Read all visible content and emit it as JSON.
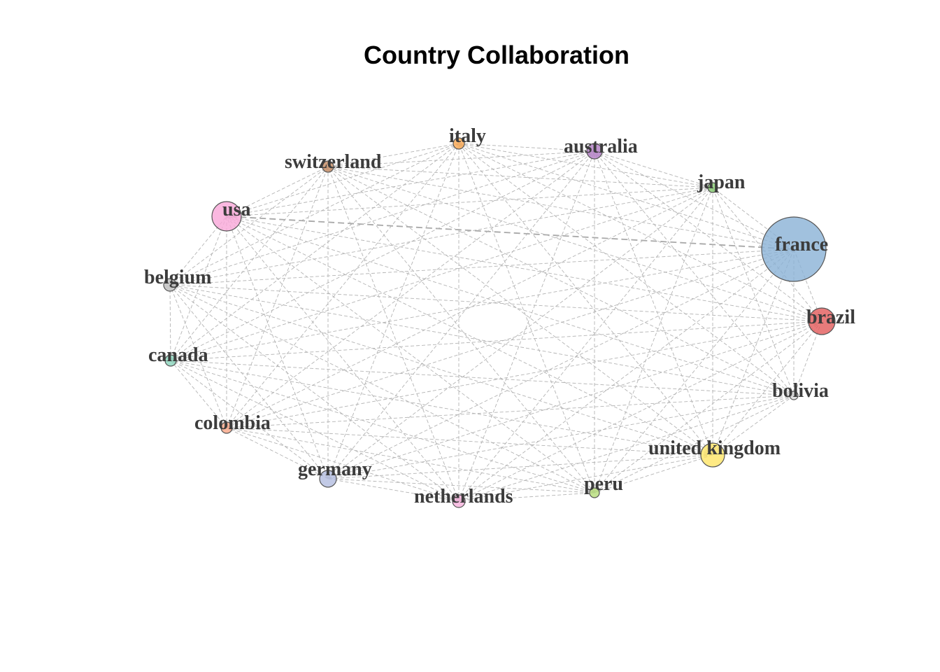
{
  "title": "Country Collaboration",
  "network": {
    "nodes": [
      {
        "id": "france",
        "label": "france",
        "color": "#8ab2d6"
      },
      {
        "id": "brazil",
        "label": "brazil",
        "color": "#e25a5a"
      },
      {
        "id": "bolivia",
        "label": "bolivia",
        "color": "#d9d9d9"
      },
      {
        "id": "united kingdom",
        "label": "united kingdom",
        "color": "#ffe565"
      },
      {
        "id": "peru",
        "label": "peru",
        "color": "#b5dc78"
      },
      {
        "id": "netherlands",
        "label": "netherlands",
        "color": "#f6b0dc"
      },
      {
        "id": "germany",
        "label": "germany",
        "color": "#b3bde0"
      },
      {
        "id": "colombia",
        "label": "colombia",
        "color": "#f7a485"
      },
      {
        "id": "canada",
        "label": "canada",
        "color": "#8ad4bc"
      },
      {
        "id": "belgium",
        "label": "belgium",
        "color": "#bdbdbd"
      },
      {
        "id": "usa",
        "label": "usa",
        "color": "#f9a6d8"
      },
      {
        "id": "switzerland",
        "label": "switzerland",
        "color": "#c48a60"
      },
      {
        "id": "italy",
        "label": "italy",
        "color": "#fba850"
      },
      {
        "id": "australia",
        "label": "australia",
        "color": "#b27cc4"
      },
      {
        "id": "japan",
        "label": "japan",
        "color": "#86cc70"
      }
    ],
    "strong_link": [
      "usa",
      "france"
    ]
  }
}
